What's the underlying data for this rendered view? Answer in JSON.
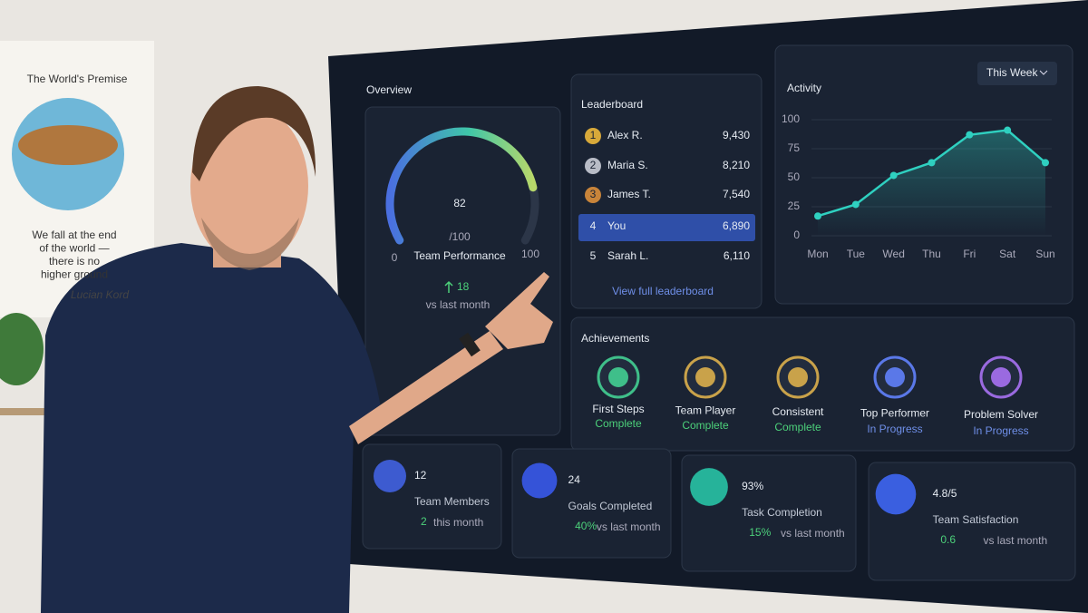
{
  "poster": {
    "title": "The World's Premise",
    "lines": [
      "We fall at the end",
      "of the world —",
      "there is no",
      "higher ground"
    ],
    "signature": "Lucian Kord"
  },
  "overview": {
    "title": "Overview",
    "score": 82,
    "out_of": "/100",
    "label": "Team Performance",
    "scale_min": 0,
    "scale_max": 100,
    "change": "18",
    "change_note": "vs last month"
  },
  "leaderboard": {
    "title": "Leaderboard",
    "rows": [
      [
        "1",
        "Alex R.",
        "9,430"
      ],
      [
        "2",
        "Maria S.",
        "8,210"
      ],
      [
        "3",
        "James T.",
        "7,540"
      ],
      [
        "4",
        "You",
        "6,890"
      ],
      [
        "5",
        "Sarah L.",
        "6,110"
      ]
    ],
    "link": "View full leaderboard"
  },
  "activity": {
    "type": "line",
    "title": "Activity",
    "period": "This Week",
    "categories": [
      "Mon",
      "Tue",
      "Wed",
      "Thu",
      "Fri",
      "Sat",
      "Sun"
    ],
    "values": [
      17,
      27,
      52,
      63,
      87,
      91,
      63
    ],
    "ylim": [
      0,
      100
    ],
    "yticks": [
      0,
      25,
      50,
      75,
      100
    ],
    "color": "#2fd0c0"
  },
  "achievements": {
    "title": "Achievements",
    "items": [
      {
        "name": "First Steps",
        "status": "Complete"
      },
      {
        "name": "Team Player",
        "status": "Complete"
      },
      {
        "name": "Consistent",
        "status": "Complete"
      },
      {
        "name": "Top Performer",
        "status": "In Progress"
      },
      {
        "name": "Problem Solver",
        "status": "In Progress"
      }
    ]
  },
  "stats": [
    {
      "value": "12",
      "label": "Team Members",
      "change": "2",
      "note": "this month"
    },
    {
      "value": "24",
      "label": "Goals Completed",
      "change": "40%",
      "note": "vs last month"
    },
    {
      "value": "93%",
      "label": "Task Completion",
      "change": "15%",
      "note": "vs last month"
    },
    {
      "value": "4.8/5",
      "label": "Team Satisfaction",
      "change": "0.6",
      "note": "vs last month"
    }
  ]
}
